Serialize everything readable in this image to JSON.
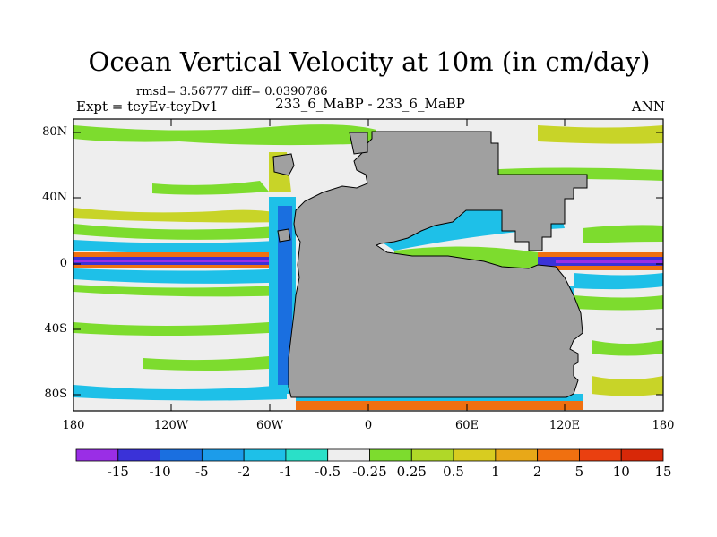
{
  "title": "Ocean Vertical Velocity at 10m (in cm/day)",
  "stats_line": "rmsd= 3.56777 diff= 0.0390786",
  "experiment": "Expt = teyEv-teyDv1",
  "cases": "233_6_MaBP - 233_6_MaBP",
  "season": "ANN",
  "lat_labels": [
    "80N",
    "40N",
    "0",
    "40S",
    "80S"
  ],
  "lon_labels": [
    "180",
    "120W",
    "60W",
    "0",
    "60E",
    "120E",
    "180"
  ],
  "colorbar": {
    "labels": [
      "-15",
      "-10",
      "-5",
      "-2",
      "-1",
      "-0.5",
      "-0.25",
      "0.25",
      "0.5",
      "1",
      "2",
      "5",
      "10",
      "15"
    ],
    "colors": [
      "#9a2ee6",
      "#3a32d8",
      "#1a6fe0",
      "#1c9cea",
      "#1ec0e8",
      "#2ae0c8",
      "#eeeeee",
      "#7ddc2e",
      "#b0d828",
      "#d8cc20",
      "#e8a818",
      "#f07010",
      "#ea4010",
      "#d82808"
    ]
  },
  "map_colors": {
    "land": "#a0a0a0",
    "ocean_neutral": "#eeeeee",
    "equator_deep": "#3a32d8",
    "equator_purple": "#9a2ee6",
    "green": "#7ddc2e",
    "yellow": "#c8d428",
    "cyan": "#1ec0e8",
    "blue": "#1a6fe0",
    "orange": "#f07010",
    "red": "#d82808"
  }
}
